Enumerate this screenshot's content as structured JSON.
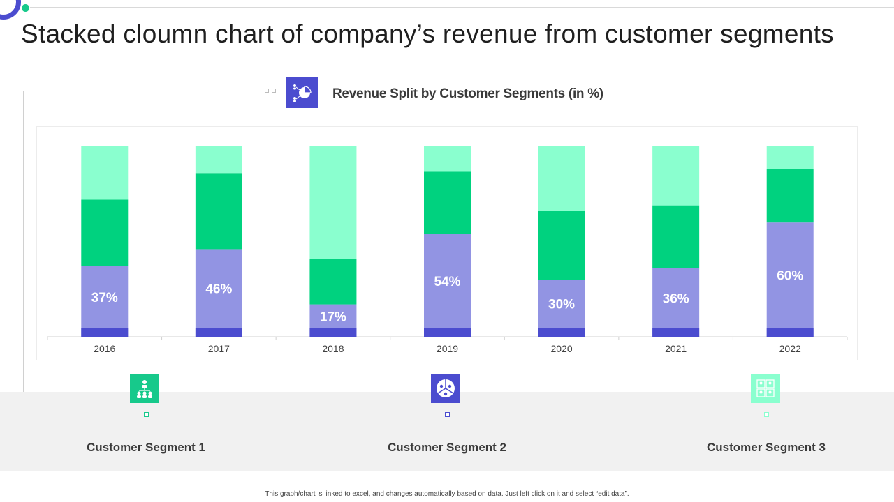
{
  "page": {
    "title": "Stacked cloumn chart of company’s revenue from customer segments",
    "footnote": "This graph/chart is linked to excel, and changes automatically based on data. Just left click on it and select “edit data”."
  },
  "chart_heading": "Revenue Split by Customer Segments (in %)",
  "chart_data": {
    "type": "bar",
    "stacked": true,
    "title": "Revenue Split by Customer Segments (in %)",
    "xlabel": "",
    "ylabel": "",
    "ylim": [
      0,
      100
    ],
    "grid": false,
    "categories": [
      "2016",
      "2017",
      "2018",
      "2019",
      "2020",
      "2021",
      "2022"
    ],
    "series": [
      {
        "name": "Customer Segment 1",
        "values": [
          37,
          46,
          17,
          54,
          30,
          36,
          60
        ],
        "color": "#9294e3",
        "data_labels": [
          "37%",
          "46%",
          "17%",
          "54%",
          "30%",
          "36%",
          "60%"
        ]
      },
      {
        "name": "Customer Segment 2",
        "values": [
          35,
          40,
          24,
          33,
          36,
          33,
          28
        ],
        "color": "#00d27f"
      },
      {
        "name": "Customer Segment 3",
        "values": [
          28,
          14,
          59,
          13,
          34,
          31,
          12
        ],
        "color": "#8affcf"
      }
    ]
  },
  "segments": [
    {
      "label": "Customer Segment 1",
      "icon": "organization-people-icon",
      "color": "#17c98b"
    },
    {
      "label": "Customer Segment 2",
      "icon": "pie-people-icon",
      "color": "#4b4ccf"
    },
    {
      "label": "Customer Segment 3",
      "icon": "user-grid-icon",
      "color": "#8affcf"
    }
  ],
  "colors": {
    "accent": "#4b4ccf",
    "green": "#17c98b",
    "segment1": "#9294e3",
    "segment2": "#00d27f",
    "segment3": "#8affcf",
    "baseline": "#4b4ccf"
  }
}
